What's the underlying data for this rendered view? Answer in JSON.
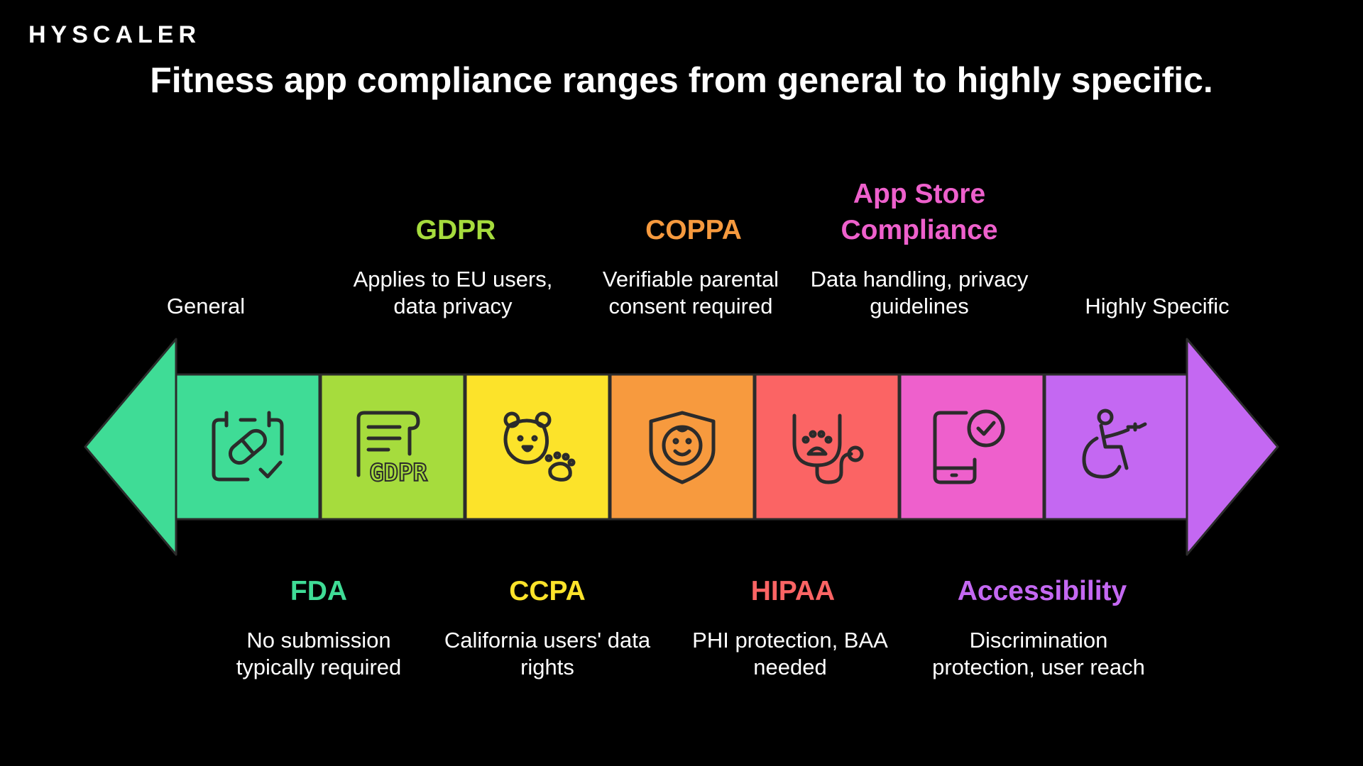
{
  "logo": {
    "text": "HYSCALER"
  },
  "title": "Fitness app compliance ranges from general to highly specific.",
  "ends": {
    "left": "General",
    "right": "Highly Specific"
  },
  "colors": {
    "arrow_left": "#3fdc96",
    "arrow_right": "#c468f2",
    "segments": [
      "#3fdc96",
      "#a6dc3d",
      "#fce32a",
      "#f79a3e",
      "#fb6464",
      "#ee60cc",
      "#c468f2"
    ]
  },
  "segments": [
    {
      "heading": "FDA",
      "description": "No submission typically required",
      "icon": "calendar-pill-icon",
      "position": "below",
      "color": "#3fdc96"
    },
    {
      "heading": "GDPR",
      "description": "Applies to EU users, data privacy",
      "icon": "gdpr-document-icon",
      "position": "above",
      "color": "#a6dc3d",
      "icon_text": "GDPR"
    },
    {
      "heading": "CCPA",
      "description": "California users' data rights",
      "icon": "bear-paw-icon",
      "position": "below",
      "color": "#fce32a"
    },
    {
      "heading": "COPPA",
      "description": "Verifiable parental consent required",
      "icon": "child-shield-icon",
      "position": "above",
      "color": "#f79a3e"
    },
    {
      "heading": "HIPAA",
      "description": "PHI protection, BAA needed",
      "icon": "stethoscope-icon",
      "position": "below",
      "color": "#fb6464"
    },
    {
      "heading": "App Store Compliance",
      "description": "Data handling, privacy guidelines",
      "icon": "phone-check-icon",
      "position": "above",
      "color": "#ee60cc"
    },
    {
      "heading": "Accessibility",
      "description": "Discrimination protection, user reach",
      "icon": "wheelchair-icon",
      "position": "below",
      "color": "#c468f2"
    }
  ]
}
